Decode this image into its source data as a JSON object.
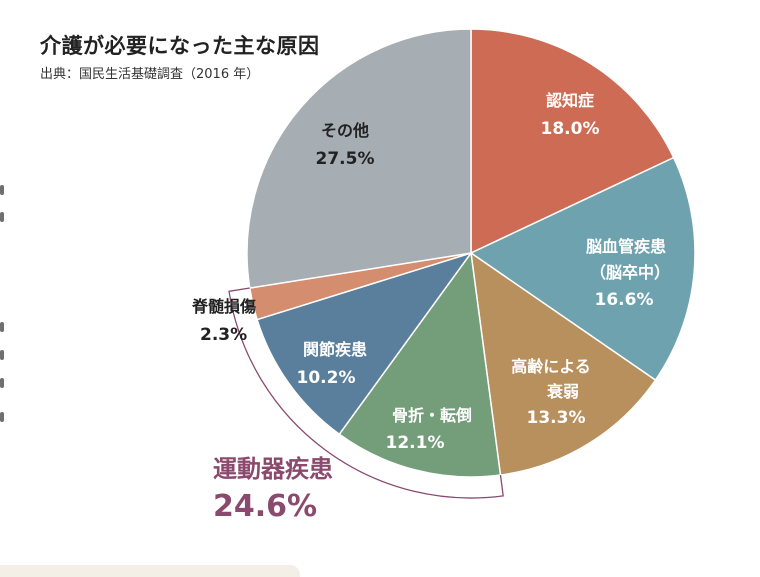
{
  "title": "介護が必要になった主な原因",
  "source": "出典：国民生活基礎調査（2016 年）",
  "colors": {
    "dementia": "#cd6b54",
    "stroke": "#6da2ae",
    "frailty": "#b8905e",
    "fracture": "#749d79",
    "joint": "#5a7f9c",
    "spinal": "#d48d6e",
    "other": "#a6adb3",
    "group": "#8a4a6e"
  },
  "chart_data": {
    "type": "pie",
    "title": "介護が必要になった主な原因",
    "slices": [
      {
        "label": "認知症",
        "value": 18.0,
        "value_label": "18.0%"
      },
      {
        "label": "脳血管疾患",
        "sublabel": "（脳卒中）",
        "value": 16.6,
        "value_label": "16.6%"
      },
      {
        "label": "高齢による",
        "sublabel": "衰弱",
        "value": 13.3,
        "value_label": "13.3%"
      },
      {
        "label": "骨折・転倒",
        "value": 12.1,
        "value_label": "12.1%"
      },
      {
        "label": "関節疾患",
        "value": 10.2,
        "value_label": "10.2%"
      },
      {
        "label": "脊髄損傷",
        "value": 2.3,
        "value_label": "2.3%"
      },
      {
        "label": "その他",
        "value": 27.5,
        "value_label": "27.5%"
      }
    ],
    "group": {
      "label": "運動器疾患",
      "value": 24.6,
      "value_label": "24.6%",
      "members": [
        "骨折・転倒",
        "関節疾患",
        "脊髄損傷"
      ]
    }
  }
}
